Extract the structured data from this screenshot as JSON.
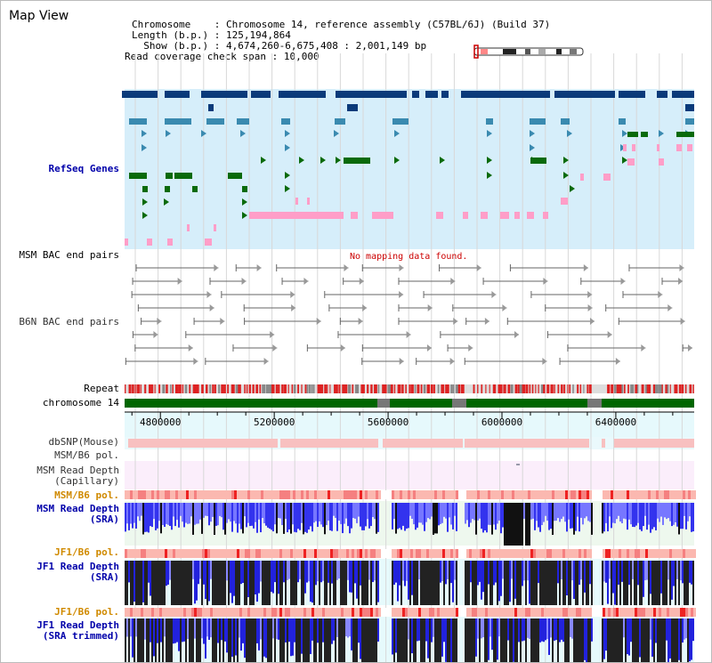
{
  "title": "Map View",
  "info": {
    "chromosome_label": "Chromosome",
    "chromosome_value": "Chromosome 14, reference assembly (C57BL/6J) (Build 37)",
    "length_label": "Length (b.p.)",
    "length_value": "125,194,864",
    "show_label": "Show (b.p.)",
    "show_value": "4,674,260-6,675,408 : 2,001,149 bp",
    "span_label": "Read coverage check span",
    "span_value": "10,000"
  },
  "tracks": {
    "refseq": "RefSeq Genes",
    "msm_bac": "MSM BAC end pairs",
    "b6n_bac": "B6N BAC end pairs",
    "no_mapping": "No mapping data found.",
    "repeat": "Repeat",
    "chromosome": "chromosome 14",
    "dbsnp": "dbSNP(Mouse)",
    "msm_b6_pol": "MSM/B6 pol.",
    "msm_depth_cap_1": "MSM Read Depth",
    "msm_depth_cap_2": "(Capillary)",
    "msm_b6_pol2": "MSM/B6 pol.",
    "msm_depth_sra_1": "MSM Read Depth",
    "msm_depth_sra_2": "(SRA)",
    "jf1_b6_pol": "JF1/B6 pol.",
    "jf1_depth_sra_1": "JF1 Read Depth",
    "jf1_depth_sra_2": "(SRA)",
    "jf1_b6_pol2": "JF1/B6 pol.",
    "jf1_depth_trim_1": "JF1 Read Depth",
    "jf1_depth_trim_2": "(SRA trimmed)"
  },
  "axis": {
    "ticks": [
      {
        "value": 4800000,
        "label": "4800000"
      },
      {
        "value": 5200000,
        "label": "5200000"
      },
      {
        "value": 5600000,
        "label": "5600000"
      },
      {
        "value": 6000000,
        "label": "6000000"
      },
      {
        "value": 6400000,
        "label": "6400000"
      }
    ]
  },
  "colors": {
    "gene_dark": "#0a3a7a",
    "gene_mid": "#3a8ab0",
    "gene_green": "#0a6a0a",
    "gene_pink": "#ff9ec8",
    "refseq_bg": "#d6eefa",
    "chromosome": "#006600",
    "depth_blue": "#2222dd",
    "depth_black": "#222222"
  }
}
